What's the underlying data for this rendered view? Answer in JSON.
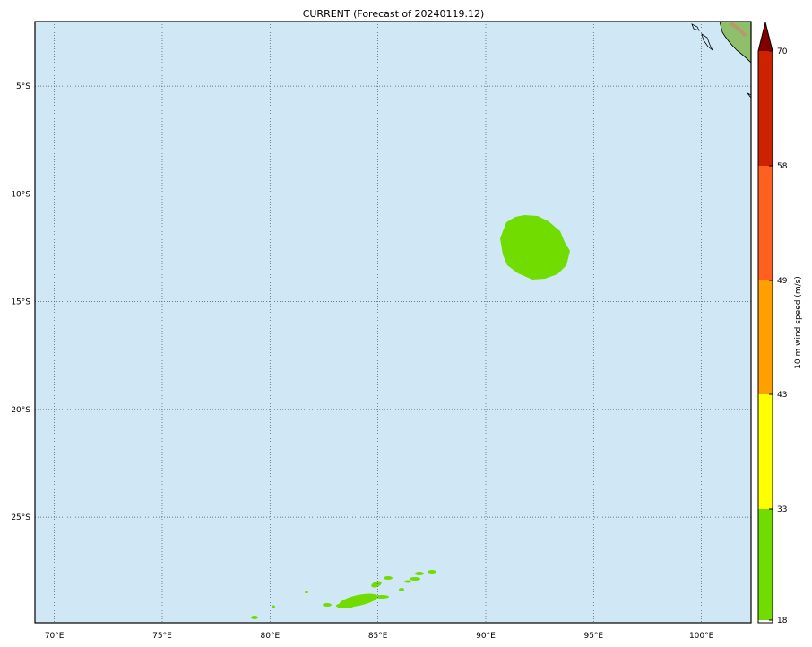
{
  "title": "CURRENT (Forecast of 20240119.12)",
  "map": {
    "ocean_color": "#d0e8f6",
    "land_color": "#8fbf6a",
    "lon_labels": [
      "70°E",
      "75°E",
      "80°E",
      "85°E",
      "90°E",
      "95°E",
      "100°E"
    ],
    "lat_labels": [
      "5°S",
      "10°S",
      "15°S",
      "20°S",
      "25°S"
    ],
    "lon_range": [
      69.1,
      102.3
    ],
    "lat_range": [
      -29.9,
      -2.0
    ]
  },
  "colorbar": {
    "label": "10 m wind speed (m/s)",
    "ticks": [
      "70",
      "58",
      "49",
      "43",
      "33",
      "18"
    ],
    "levels": [
      18,
      33,
      43,
      49,
      58,
      70
    ],
    "colors": [
      "#70dc00",
      "#ffff00",
      "#ffa000",
      "#ff6020",
      "#cc2200"
    ],
    "extend_color": "#800000"
  }
}
